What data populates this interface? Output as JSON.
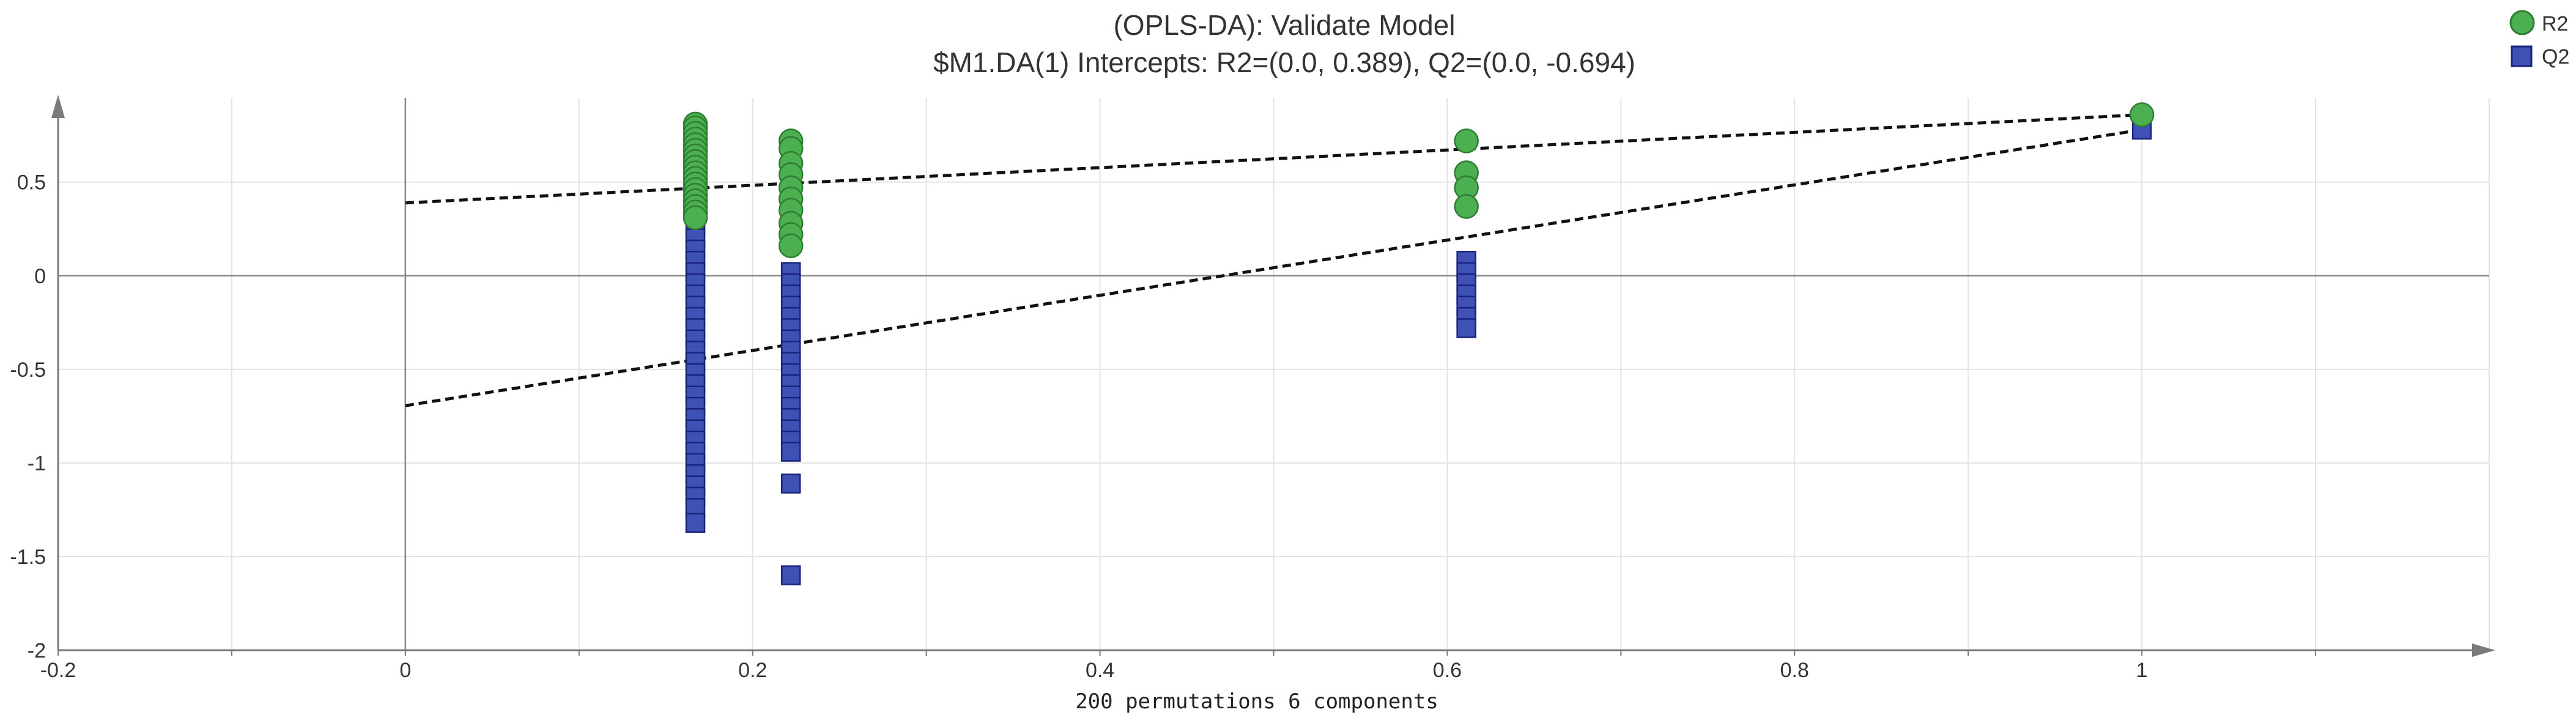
{
  "chart_data": {
    "type": "scatter",
    "title": "(OPLS-DA): Validate Model",
    "subtitle": "$M1.DA(1) Intercepts: R2=(0.0, 0.389), Q2=(0.0, -0.694)",
    "xlabel": "200 permutations 6 components",
    "ylabel": "",
    "xlim": [
      -0.2,
      1.2
    ],
    "ylim": [
      -2,
      0.95
    ],
    "x_ticks": [
      -0.2,
      0,
      0.2,
      0.4,
      0.6,
      0.8,
      1
    ],
    "x_tick_labels": [
      "-0.2",
      "0",
      "0.2",
      "0.4",
      "0.6",
      "0.8",
      "1"
    ],
    "y_ticks": [
      -2,
      -1.5,
      -1,
      -0.5,
      0,
      0.5
    ],
    "y_tick_labels": [
      "-2",
      "-1.5",
      "-1",
      "-0.5",
      "0",
      "0.5"
    ],
    "grid": true,
    "legend_position": "top-right",
    "series": [
      {
        "name": "R2",
        "marker": "circle",
        "color": "#4CAF50",
        "edge_color": "#2E7D32",
        "points": [
          [
            0.167,
            0.81
          ],
          [
            0.167,
            0.79
          ],
          [
            0.167,
            0.76
          ],
          [
            0.167,
            0.73
          ],
          [
            0.167,
            0.7
          ],
          [
            0.167,
            0.67
          ],
          [
            0.167,
            0.64
          ],
          [
            0.167,
            0.61
          ],
          [
            0.167,
            0.58
          ],
          [
            0.167,
            0.55
          ],
          [
            0.167,
            0.52
          ],
          [
            0.167,
            0.49
          ],
          [
            0.167,
            0.46
          ],
          [
            0.167,
            0.43
          ],
          [
            0.167,
            0.4
          ],
          [
            0.167,
            0.37
          ],
          [
            0.167,
            0.34
          ],
          [
            0.167,
            0.31
          ],
          [
            0.222,
            0.72
          ],
          [
            0.222,
            0.68
          ],
          [
            0.222,
            0.6
          ],
          [
            0.222,
            0.54
          ],
          [
            0.222,
            0.47
          ],
          [
            0.222,
            0.41
          ],
          [
            0.222,
            0.35
          ],
          [
            0.222,
            0.28
          ],
          [
            0.222,
            0.22
          ],
          [
            0.222,
            0.16
          ],
          [
            0.611,
            0.72
          ],
          [
            0.611,
            0.55
          ],
          [
            0.611,
            0.47
          ],
          [
            0.611,
            0.37
          ],
          [
            1.0,
            0.86
          ]
        ]
      },
      {
        "name": "Q2",
        "marker": "square",
        "color": "#3F51B5",
        "edge_color": "#1A237E",
        "points": [
          [
            0.167,
            0.5
          ],
          [
            0.167,
            0.44
          ],
          [
            0.167,
            0.38
          ],
          [
            0.167,
            0.32
          ],
          [
            0.167,
            0.26
          ],
          [
            0.167,
            0.2
          ],
          [
            0.167,
            0.14
          ],
          [
            0.167,
            0.08
          ],
          [
            0.167,
            0.02
          ],
          [
            0.167,
            -0.04
          ],
          [
            0.167,
            -0.1
          ],
          [
            0.167,
            -0.16
          ],
          [
            0.167,
            -0.22
          ],
          [
            0.167,
            -0.28
          ],
          [
            0.167,
            -0.34
          ],
          [
            0.167,
            -0.4
          ],
          [
            0.167,
            -0.46
          ],
          [
            0.167,
            -0.52
          ],
          [
            0.167,
            -0.58
          ],
          [
            0.167,
            -0.64
          ],
          [
            0.167,
            -0.7
          ],
          [
            0.167,
            -0.76
          ],
          [
            0.167,
            -0.82
          ],
          [
            0.167,
            -0.88
          ],
          [
            0.167,
            -0.94
          ],
          [
            0.167,
            -1.0
          ],
          [
            0.167,
            -1.06
          ],
          [
            0.167,
            -1.12
          ],
          [
            0.167,
            -1.18
          ],
          [
            0.167,
            -1.24
          ],
          [
            0.167,
            -1.32
          ],
          [
            0.222,
            0.35
          ],
          [
            0.222,
            0.02
          ],
          [
            0.222,
            -0.04
          ],
          [
            0.222,
            -0.1
          ],
          [
            0.222,
            -0.16
          ],
          [
            0.222,
            -0.22
          ],
          [
            0.222,
            -0.28
          ],
          [
            0.222,
            -0.34
          ],
          [
            0.222,
            -0.4
          ],
          [
            0.222,
            -0.46
          ],
          [
            0.222,
            -0.52
          ],
          [
            0.222,
            -0.58
          ],
          [
            0.222,
            -0.64
          ],
          [
            0.222,
            -0.7
          ],
          [
            0.222,
            -0.76
          ],
          [
            0.222,
            -0.82
          ],
          [
            0.222,
            -0.88
          ],
          [
            0.222,
            -0.94
          ],
          [
            0.222,
            -1.11
          ],
          [
            0.222,
            -1.6
          ],
          [
            0.611,
            0.08
          ],
          [
            0.611,
            0.02
          ],
          [
            0.611,
            -0.04
          ],
          [
            0.611,
            -0.1
          ],
          [
            0.611,
            -0.16
          ],
          [
            0.611,
            -0.22
          ],
          [
            0.611,
            -0.28
          ],
          [
            1.0,
            0.78
          ]
        ]
      }
    ],
    "regression_lines": [
      {
        "name": "R2 fit",
        "x": [
          0,
          1.0
        ],
        "y": [
          0.389,
          0.86
        ]
      },
      {
        "name": "Q2 fit",
        "x": [
          0,
          1.0
        ],
        "y": [
          -0.694,
          0.78
        ]
      }
    ]
  }
}
